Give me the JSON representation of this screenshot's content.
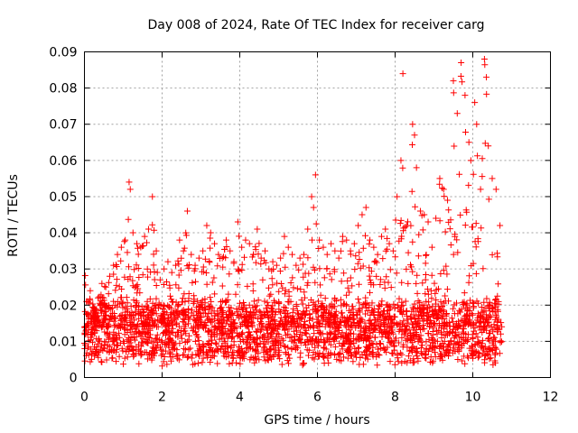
{
  "chart_data": {
    "type": "scatter",
    "title": "Day 008 of 2024, Rate Of TEC Index for receiver carg",
    "xlabel": "GPS time / hours",
    "ylabel": "ROTI / TECUs",
    "xlim": [
      0,
      12
    ],
    "ylim": [
      0,
      0.09
    ],
    "xticks": [
      0,
      2,
      4,
      6,
      8,
      10,
      12
    ],
    "yticks": [
      0,
      0.01,
      0.02,
      0.03,
      0.04,
      0.05,
      0.06,
      0.07,
      0.08,
      0.09
    ],
    "xtick_labels": [
      "0",
      "2",
      "4",
      "6",
      "8",
      "10",
      "12"
    ],
    "ytick_labels": [
      "0",
      "0.01",
      "0.02",
      "0.03",
      "0.04",
      "0.05",
      "0.06",
      "0.07",
      "0.08",
      "0.09"
    ],
    "grid": true,
    "marker": "+",
    "color": "#ff0000",
    "series": [
      {
        "name": "ROTI",
        "x": [
          0.05,
          0.15,
          0.25,
          0.35,
          0.45,
          0.55,
          0.65,
          0.75,
          0.85,
          0.95,
          1.05,
          1.15,
          1.18,
          1.25,
          1.35,
          1.45,
          1.55,
          1.65,
          1.75,
          1.85,
          1.95,
          2.05,
          2.15,
          2.25,
          2.35,
          2.45,
          2.55,
          2.65,
          2.75,
          2.85,
          2.95,
          3.05,
          3.15,
          3.25,
          3.35,
          3.45,
          3.55,
          3.65,
          3.75,
          3.85,
          3.95,
          4.05,
          4.15,
          4.25,
          4.35,
          4.45,
          4.55,
          4.65,
          4.75,
          4.85,
          4.95,
          5.05,
          5.15,
          5.25,
          5.35,
          5.45,
          5.55,
          5.65,
          5.75,
          5.85,
          5.9,
          5.95,
          6.05,
          6.15,
          6.25,
          6.35,
          6.45,
          6.55,
          6.65,
          6.75,
          6.85,
          6.95,
          7.05,
          7.15,
          7.25,
          7.35,
          7.45,
          7.55,
          7.65,
          7.75,
          7.85,
          7.95,
          8.05,
          8.15,
          8.2,
          8.3,
          8.45,
          8.5,
          8.55,
          8.65,
          8.75,
          8.85,
          8.95,
          9.05,
          9.15,
          9.25,
          9.35,
          9.5,
          9.6,
          9.7,
          9.8,
          9.9,
          9.95,
          10.05,
          10.1,
          10.2,
          10.3,
          10.35,
          10.4,
          10.5,
          10.6,
          10.7
        ],
        "y": [
          0.021,
          0.024,
          0.019,
          0.022,
          0.026,
          0.025,
          0.028,
          0.031,
          0.034,
          0.036,
          0.038,
          0.054,
          0.052,
          0.04,
          0.037,
          0.036,
          0.039,
          0.041,
          0.05,
          0.035,
          0.027,
          0.03,
          0.032,
          0.029,
          0.031,
          0.038,
          0.035,
          0.046,
          0.034,
          0.031,
          0.033,
          0.035,
          0.042,
          0.04,
          0.037,
          0.034,
          0.033,
          0.038,
          0.035,
          0.032,
          0.043,
          0.036,
          0.038,
          0.037,
          0.034,
          0.041,
          0.033,
          0.035,
          0.03,
          0.032,
          0.031,
          0.033,
          0.039,
          0.036,
          0.034,
          0.031,
          0.033,
          0.034,
          0.041,
          0.05,
          0.047,
          0.056,
          0.038,
          0.036,
          0.034,
          0.037,
          0.035,
          0.033,
          0.039,
          0.038,
          0.035,
          0.037,
          0.042,
          0.045,
          0.047,
          0.038,
          0.036,
          0.034,
          0.039,
          0.041,
          0.037,
          0.035,
          0.05,
          0.06,
          0.084,
          0.042,
          0.07,
          0.067,
          0.058,
          0.046,
          0.045,
          0.043,
          0.036,
          0.044,
          0.055,
          0.052,
          0.049,
          0.082,
          0.073,
          0.087,
          0.078,
          0.065,
          0.06,
          0.076,
          0.07,
          0.052,
          0.088,
          0.083,
          0.064,
          0.055,
          0.052,
          0.042
        ]
      }
    ],
    "point_count": 4200,
    "x_end": 10.75,
    "baseline_band": [
      0.005,
      0.02
    ]
  }
}
